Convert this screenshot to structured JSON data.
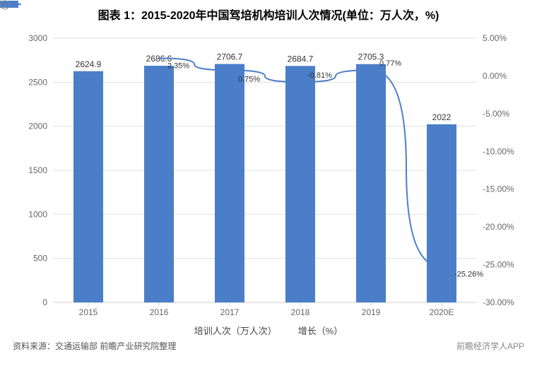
{
  "title": "图表 1：2015-2020年中国驾培机构培训人次情况(单位：万人次，%)",
  "chart": {
    "type": "bar+line",
    "categories": [
      "2015",
      "2016",
      "2017",
      "2018",
      "2019",
      "2020E"
    ],
    "bar_series": {
      "name": "培训人次（万人次）",
      "values": [
        2624.9,
        2686.6,
        2706.7,
        2684.7,
        2705.3,
        2022
      ],
      "labels": [
        "2624.9",
        "2686.6",
        "2706.7",
        "2684.7",
        "2705.3",
        "2022"
      ],
      "color": "#4a7ec8"
    },
    "line_series": {
      "name": "增长（%）",
      "values": [
        null,
        2.35,
        0.75,
        -0.81,
        0.77,
        -25.26
      ],
      "labels": [
        "",
        "2.35%",
        "0.75%",
        "-0.81%",
        "0.77%",
        "-25.26%"
      ],
      "color": "#4a7ec8",
      "line_width": 2
    },
    "y_left": {
      "min": 0,
      "max": 3000,
      "step": 500,
      "labels": [
        "0",
        "500",
        "1000",
        "1500",
        "2000",
        "2500",
        "3000"
      ]
    },
    "y_right": {
      "min": -30,
      "max": 5,
      "step": 5,
      "labels": [
        "-30.00%",
        "-25.00%",
        "-20.00%",
        "-15.00%",
        "-10.00%",
        "-5.00%",
        "0.00%",
        "5.00%"
      ]
    },
    "grid_color": "#e0e0e0",
    "axis_color": "#cccccc",
    "bar_width": 0.42,
    "background": "#ffffff",
    "title_fontsize": 15,
    "axis_fontsize": 12,
    "legend_bar_icon_color": "#4a7ec8",
    "legend_line_icon_color": "#4a7ec8"
  },
  "legend": {
    "bar": "培训人次（万人次）",
    "line": "增长（%）"
  },
  "footer": {
    "source": "资料来源：交通运输部 前瞻产业研究院整理",
    "brand": "前瞻经济学人APP"
  }
}
